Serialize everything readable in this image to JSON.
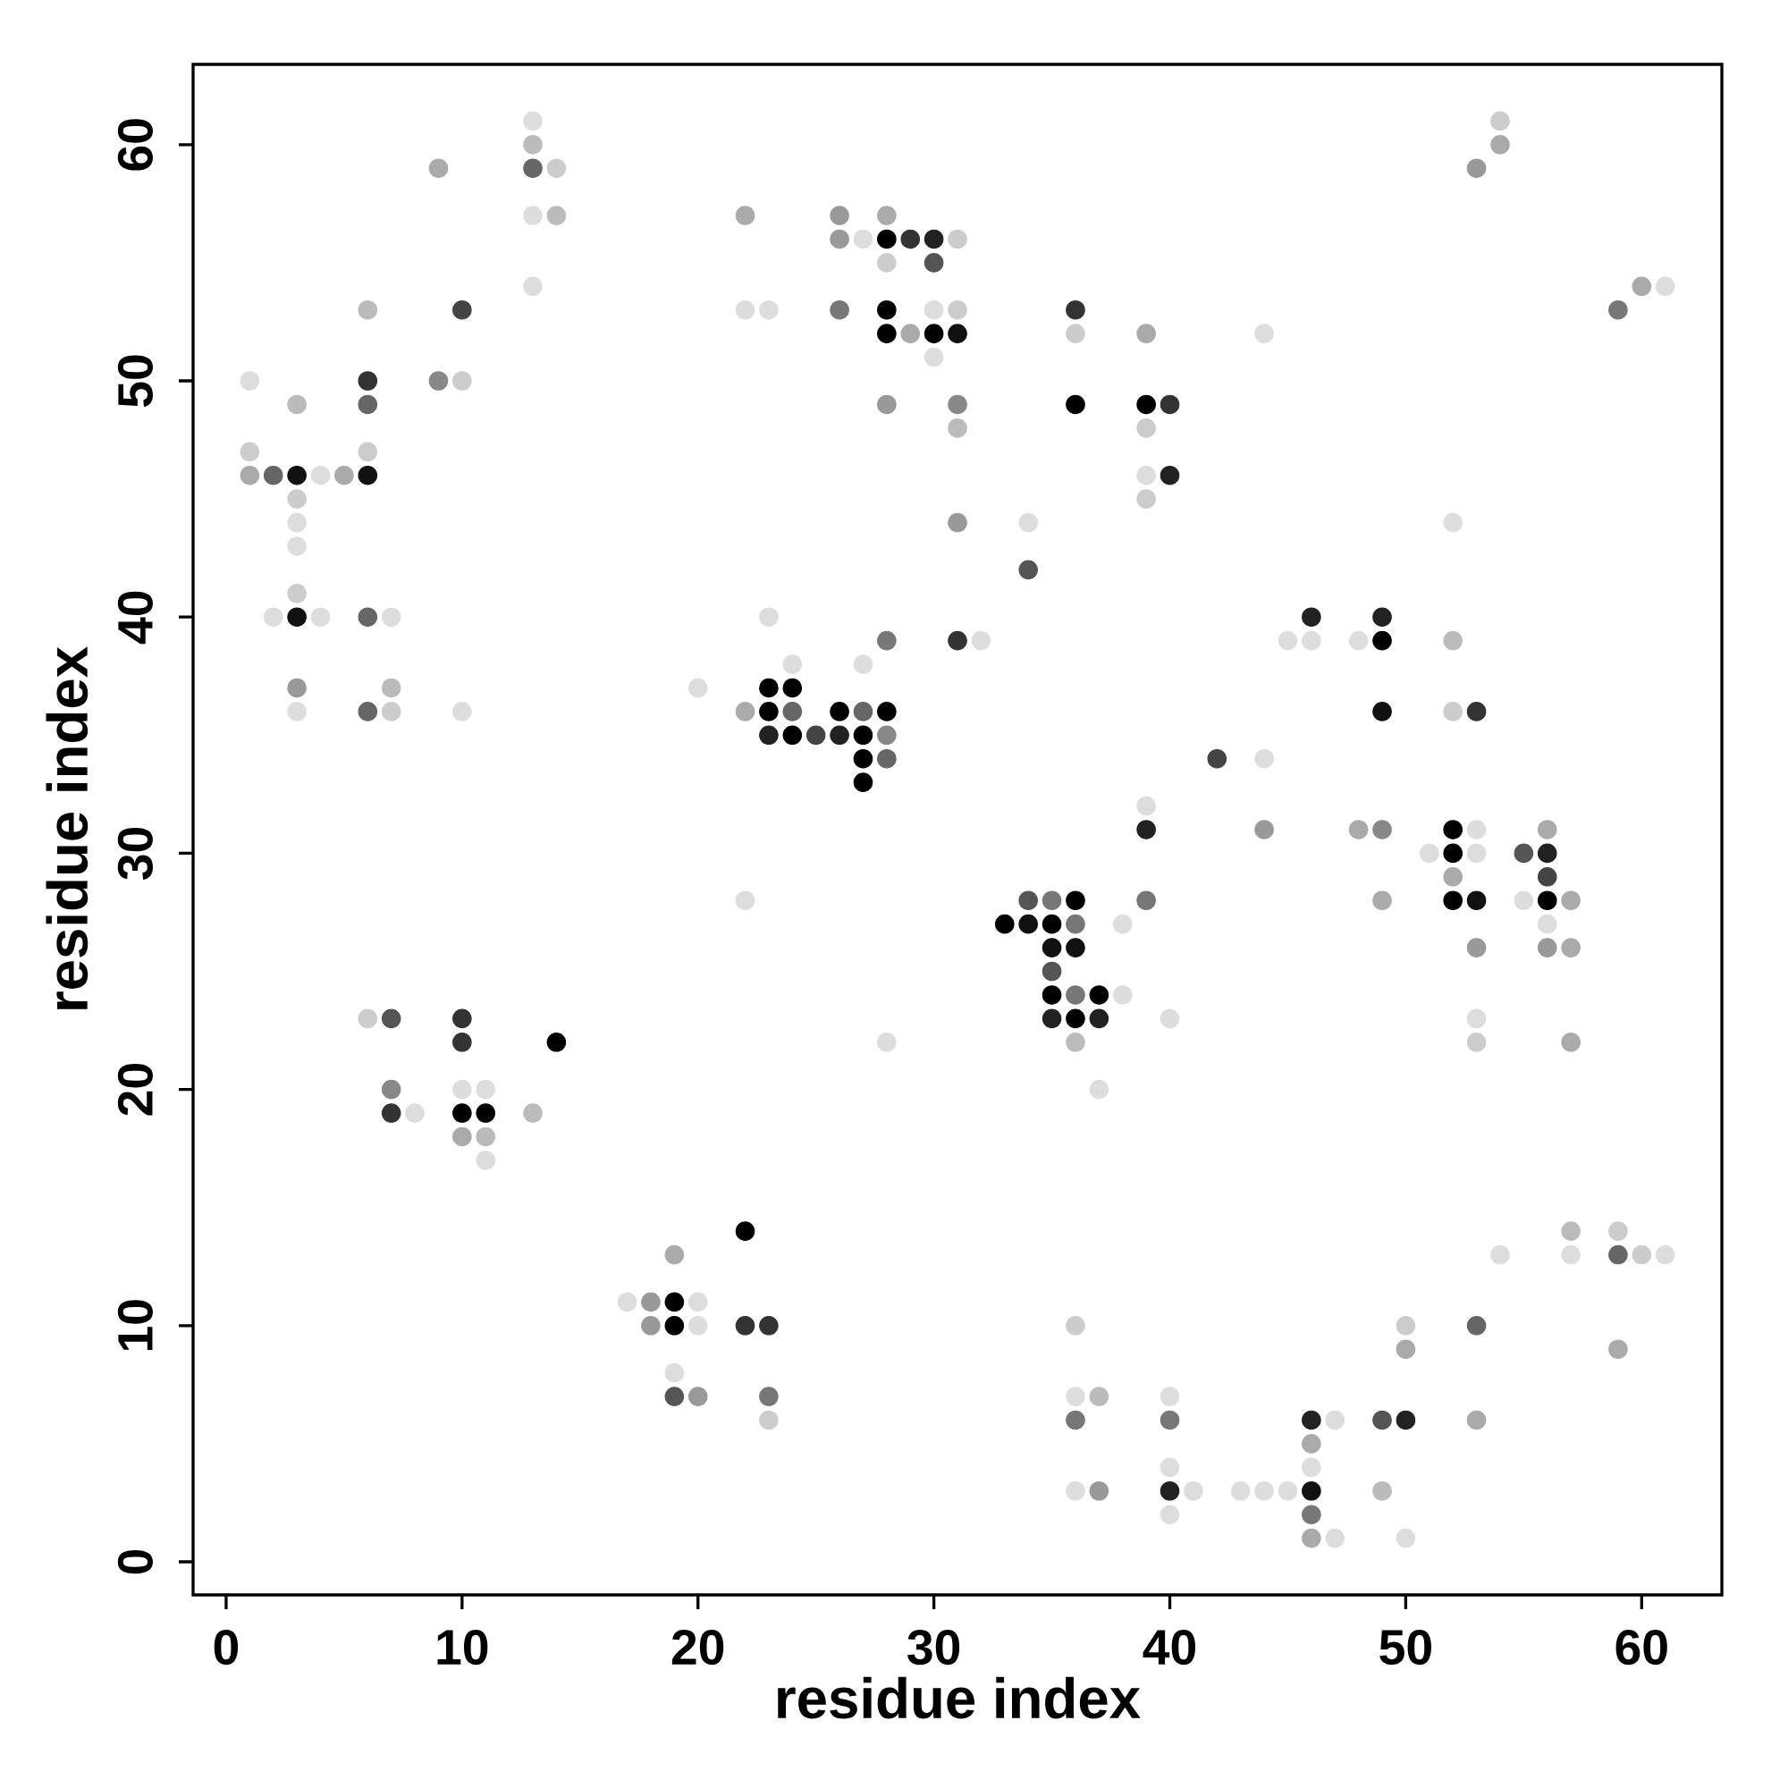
{
  "chart_data": {
    "type": "scatter",
    "xlabel": "residue index",
    "ylabel": "residue index",
    "marker": "circle",
    "xlim": [
      -1.4,
      63.4
    ],
    "ylim": [
      -1.4,
      63.4
    ],
    "xticks": [
      0,
      10,
      20,
      30,
      40,
      50,
      60
    ],
    "yticks": [
      0,
      10,
      20,
      30,
      40,
      50,
      60
    ],
    "x": [
      13,
      54,
      13,
      54,
      9,
      13,
      14,
      53,
      13,
      14,
      22,
      26,
      28,
      26,
      27,
      28,
      29,
      30,
      31,
      28,
      30,
      13,
      60,
      61,
      6,
      10,
      22,
      23,
      26,
      28,
      30,
      31,
      36,
      59,
      28,
      29,
      30,
      31,
      36,
      39,
      44,
      30,
      1,
      6,
      9,
      10,
      3,
      6,
      28,
      31,
      36,
      39,
      40,
      31,
      39,
      1,
      6,
      1,
      2,
      3,
      4,
      5,
      6,
      39,
      40,
      3,
      39,
      3,
      31,
      34,
      52,
      3,
      34,
      3,
      2,
      3,
      4,
      6,
      7,
      23,
      46,
      49,
      28,
      31,
      32,
      45,
      46,
      48,
      49,
      52,
      24,
      27,
      3,
      7,
      20,
      23,
      24,
      3,
      6,
      7,
      10,
      22,
      23,
      24,
      26,
      27,
      28,
      49,
      52,
      53,
      23,
      24,
      25,
      26,
      27,
      28,
      27,
      28,
      42,
      44,
      27,
      39,
      39,
      44,
      48,
      49,
      52,
      53,
      56,
      51,
      52,
      53,
      55,
      56,
      52,
      56,
      22,
      34,
      35,
      36,
      39,
      49,
      52,
      53,
      55,
      56,
      57,
      33,
      34,
      35,
      36,
      38,
      56,
      35,
      36,
      53,
      56,
      57,
      35,
      35,
      36,
      37,
      38,
      6,
      7,
      10,
      35,
      36,
      37,
      40,
      53,
      10,
      14,
      28,
      36,
      53,
      57,
      7,
      10,
      11,
      37,
      7,
      8,
      10,
      11,
      13,
      10,
      11,
      11,
      22,
      57,
      59,
      19,
      54,
      57,
      59,
      60,
      61,
      17,
      18,
      19,
      20,
      18,
      19,
      20,
      22,
      23,
      36,
      50,
      53,
      50,
      59,
      19,
      19,
      20,
      23,
      36,
      37,
      40,
      23,
      36,
      40,
      46,
      47,
      49,
      50,
      53,
      46,
      40,
      46,
      36,
      37,
      40,
      41,
      43,
      44,
      45,
      46,
      49,
      40,
      46,
      46,
      47,
      50
    ],
    "values": [
      61,
      61,
      60,
      60,
      59,
      59,
      59,
      59,
      57,
      57,
      57,
      57,
      57,
      56,
      56,
      56,
      56,
      56,
      56,
      55,
      55,
      54,
      54,
      54,
      53,
      53,
      53,
      53,
      53,
      53,
      53,
      53,
      53,
      53,
      52,
      52,
      52,
      52,
      52,
      52,
      52,
      51,
      50,
      50,
      50,
      50,
      49,
      49,
      49,
      49,
      49,
      49,
      49,
      48,
      48,
      47,
      47,
      46,
      46,
      46,
      46,
      46,
      46,
      46,
      46,
      45,
      45,
      44,
      44,
      44,
      44,
      43,
      42,
      41,
      40,
      40,
      40,
      40,
      40,
      40,
      40,
      40,
      39,
      39,
      39,
      39,
      39,
      39,
      39,
      39,
      38,
      38,
      37,
      37,
      37,
      37,
      37,
      36,
      36,
      36,
      36,
      36,
      36,
      36,
      36,
      36,
      36,
      36,
      36,
      36,
      35,
      35,
      35,
      35,
      35,
      35,
      34,
      34,
      34,
      34,
      33,
      32,
      31,
      31,
      31,
      31,
      31,
      31,
      31,
      30,
      30,
      30,
      30,
      30,
      29,
      29,
      28,
      28,
      28,
      28,
      28,
      28,
      28,
      28,
      28,
      28,
      28,
      27,
      27,
      27,
      27,
      27,
      27,
      26,
      26,
      26,
      26,
      26,
      25,
      24,
      24,
      24,
      24,
      23,
      23,
      23,
      23,
      23,
      23,
      23,
      23,
      22,
      22,
      22,
      22,
      22,
      22,
      20,
      20,
      20,
      20,
      19,
      19,
      19,
      19,
      19,
      18,
      18,
      17,
      14,
      14,
      14,
      13,
      13,
      13,
      13,
      13,
      13,
      11,
      11,
      11,
      11,
      10,
      10,
      10,
      10,
      10,
      10,
      10,
      10,
      9,
      9,
      8,
      7,
      7,
      7,
      7,
      7,
      7,
      6,
      6,
      6,
      6,
      6,
      6,
      6,
      6,
      5,
      4,
      4,
      3,
      3,
      3,
      3,
      3,
      3,
      3,
      3,
      3,
      2,
      2,
      1,
      1,
      1
    ],
    "colors": [
      "#dddddd",
      "#cccccc",
      "#bbbbbb",
      "#aaaaaa",
      "#aaaaaa",
      "#666666",
      "#cccccc",
      "#999999",
      "#dddddd",
      "#bbbbbb",
      "#aaaaaa",
      "#999999",
      "#aaaaaa",
      "#999999",
      "#dddddd",
      "#000000",
      "#333333",
      "#222222",
      "#cccccc",
      "#cccccc",
      "#555555",
      "#dddddd",
      "#aaaaaa",
      "#dddddd",
      "#bbbbbb",
      "#444444",
      "#dddddd",
      "#dddddd",
      "#777777",
      "#000000",
      "#dddddd",
      "#cccccc",
      "#333333",
      "#777777",
      "#000000",
      "#aaaaaa",
      "#000000",
      "#111111",
      "#cccccc",
      "#aaaaaa",
      "#dddddd",
      "#dddddd",
      "#dddddd",
      "#333333",
      "#888888",
      "#cccccc",
      "#bbbbbb",
      "#666666",
      "#999999",
      "#888888",
      "#000000",
      "#000000",
      "#333333",
      "#bbbbbb",
      "#cccccc",
      "#cccccc",
      "#cccccc",
      "#aaaaaa",
      "#666666",
      "#111111",
      "#dddddd",
      "#aaaaaa",
      "#111111",
      "#dddddd",
      "#222222",
      "#cccccc",
      "#cccccc",
      "#dddddd",
      "#999999",
      "#dddddd",
      "#dddddd",
      "#dddddd",
      "#555555",
      "#cccccc",
      "#dddddd",
      "#111111",
      "#dddddd",
      "#666666",
      "#dddddd",
      "#dddddd",
      "#222222",
      "#222222",
      "#777777",
      "#333333",
      "#dddddd",
      "#dddddd",
      "#dddddd",
      "#dddddd",
      "#000000",
      "#bbbbbb",
      "#dddddd",
      "#dddddd",
      "#999999",
      "#bbbbbb",
      "#dddddd",
      "#000000",
      "#000000",
      "#dddddd",
      "#666666",
      "#cccccc",
      "#dddddd",
      "#aaaaaa",
      "#000000",
      "#666666",
      "#000000",
      "#666666",
      "#000000",
      "#111111",
      "#cccccc",
      "#333333",
      "#222222",
      "#000000",
      "#444444",
      "#222222",
      "#000000",
      "#888888",
      "#000000",
      "#666666",
      "#444444",
      "#dddddd",
      "#000000",
      "#dddddd",
      "#222222",
      "#999999",
      "#aaaaaa",
      "#888888",
      "#000000",
      "#dddddd",
      "#aaaaaa",
      "#dddddd",
      "#000000",
      "#dddddd",
      "#555555",
      "#222222",
      "#aaaaaa",
      "#444444",
      "#dddddd",
      "#555555",
      "#777777",
      "#000000",
      "#777777",
      "#aaaaaa",
      "#000000",
      "#111111",
      "#dddddd",
      "#000000",
      "#aaaaaa",
      "#000000",
      "#111111",
      "#000000",
      "#777777",
      "#dddddd",
      "#dddddd",
      "#111111",
      "#111111",
      "#999999",
      "#999999",
      "#aaaaaa",
      "#555555",
      "#000000",
      "#777777",
      "#000000",
      "#dddddd",
      "#cccccc",
      "#555555",
      "#333333",
      "#222222",
      "#000000",
      "#222222",
      "#dddddd",
      "#dddddd",
      "#333333",
      "#000000",
      "#dddddd",
      "#bbbbbb",
      "#cccccc",
      "#aaaaaa",
      "#888888",
      "#dddddd",
      "#dddddd",
      "#dddddd",
      "#333333",
      "#dddddd",
      "#000000",
      "#000000",
      "#bbbbbb",
      "#aaaaaa",
      "#bbbbbb",
      "#dddddd",
      "#000000",
      "#bbbbbb",
      "#cccccc",
      "#aaaaaa",
      "#dddddd",
      "#dddddd",
      "#666666",
      "#cccccc",
      "#dddddd",
      "#dddddd",
      "#999999",
      "#000000",
      "#dddddd",
      "#999999",
      "#000000",
      "#dddddd",
      "#333333",
      "#333333",
      "#cccccc",
      "#cccccc",
      "#666666",
      "#aaaaaa",
      "#aaaaaa",
      "#dddddd",
      "#555555",
      "#999999",
      "#777777",
      "#dddddd",
      "#bbbbbb",
      "#dddddd",
      "#cccccc",
      "#777777",
      "#777777",
      "#222222",
      "#dddddd",
      "#555555",
      "#222222",
      "#aaaaaa",
      "#aaaaaa",
      "#dddddd",
      "#dddddd",
      "#dddddd",
      "#999999",
      "#222222",
      "#dddddd",
      "#dddddd",
      "#dddddd",
      "#dddddd",
      "#111111",
      "#bbbbbb",
      "#dddddd",
      "#777777",
      "#aaaaaa",
      "#dddddd",
      "#dddddd"
    ]
  }
}
